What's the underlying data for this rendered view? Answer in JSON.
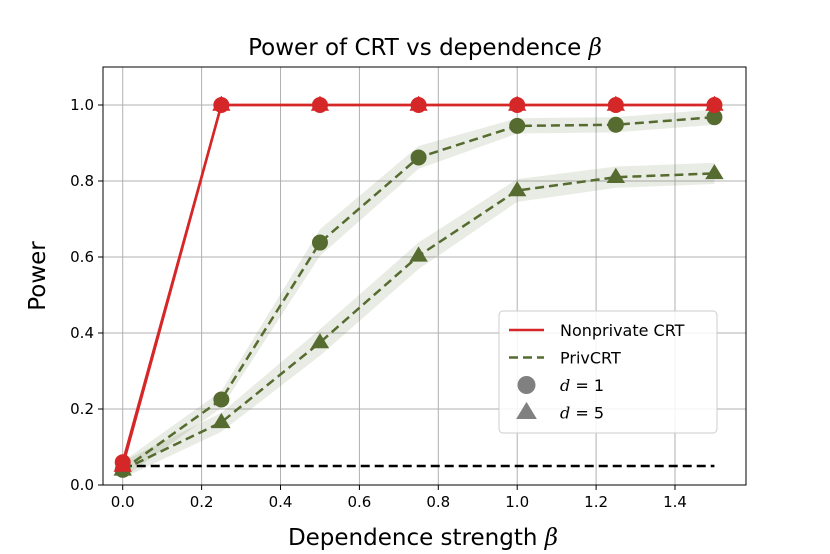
{
  "chart_data": {
    "type": "line",
    "title": "Power of CRT vs dependence",
    "title_symbol": "β",
    "xlabel": "Dependence strength",
    "xlabel_symbol": "β",
    "ylabel": "Power",
    "xlim": [
      -0.05,
      1.58
    ],
    "ylim": [
      0.0,
      1.1
    ],
    "xticks": [
      0.0,
      0.2,
      0.4,
      0.6,
      0.8,
      1.0,
      1.2,
      1.4
    ],
    "xtick_labels": [
      "0.0",
      "0.2",
      "0.4",
      "0.6",
      "0.8",
      "1.0",
      "1.2",
      "1.4"
    ],
    "yticks": [
      0.0,
      0.2,
      0.4,
      0.6,
      0.8,
      1.0
    ],
    "ytick_labels": [
      "0.0",
      "0.2",
      "0.4",
      "0.6",
      "0.8",
      "1.0"
    ],
    "grid": true,
    "x": [
      0.0,
      0.25,
      0.5,
      0.75,
      1.0,
      1.25,
      1.5
    ],
    "series": [
      {
        "name": "Nonprivate CRT, d = 1",
        "method": "Nonprivate CRT",
        "d": 1,
        "marker": "circle",
        "style": "solid",
        "color": "#d62728",
        "values": [
          0.06,
          1.0,
          1.0,
          1.0,
          1.0,
          1.0,
          1.0
        ]
      },
      {
        "name": "Nonprivate CRT, d = 5",
        "method": "Nonprivate CRT",
        "d": 5,
        "marker": "triangle",
        "style": "solid",
        "color": "#d62728",
        "values": [
          0.05,
          1.0,
          1.0,
          1.0,
          1.0,
          1.0,
          1.0
        ]
      },
      {
        "name": "PrivCRT, d = 1",
        "method": "PrivCRT",
        "d": 1,
        "marker": "circle",
        "style": "dashed",
        "color": "#556b2f",
        "values": [
          0.04,
          0.225,
          0.638,
          0.862,
          0.945,
          0.948,
          0.968
        ],
        "band": [
          0.022,
          0.022,
          0.035,
          0.03,
          0.02,
          0.02,
          0.02
        ]
      },
      {
        "name": "PrivCRT, d = 5",
        "method": "PrivCRT",
        "d": 5,
        "marker": "triangle",
        "style": "dashed",
        "color": "#556b2f",
        "values": [
          0.04,
          0.165,
          0.375,
          0.603,
          0.775,
          0.81,
          0.82
        ],
        "band": [
          0.022,
          0.025,
          0.035,
          0.035,
          0.03,
          0.028,
          0.028
        ]
      }
    ],
    "reference_line": {
      "y": 0.05,
      "x_range": [
        0.0,
        1.5
      ],
      "style": "dashed",
      "color": "#000000"
    },
    "legend": {
      "position": "lower-right",
      "entries": [
        {
          "label": "Nonprivate CRT",
          "kind": "line",
          "style": "solid",
          "color": "#d62728"
        },
        {
          "label": "PrivCRT",
          "kind": "line",
          "style": "dashed",
          "color": "#556b2f"
        },
        {
          "var": "d",
          "value": "= 1",
          "kind": "marker",
          "marker": "circle",
          "color": "#808080"
        },
        {
          "var": "d",
          "value": "= 5",
          "kind": "marker",
          "marker": "triangle",
          "color": "#808080"
        }
      ]
    }
  }
}
